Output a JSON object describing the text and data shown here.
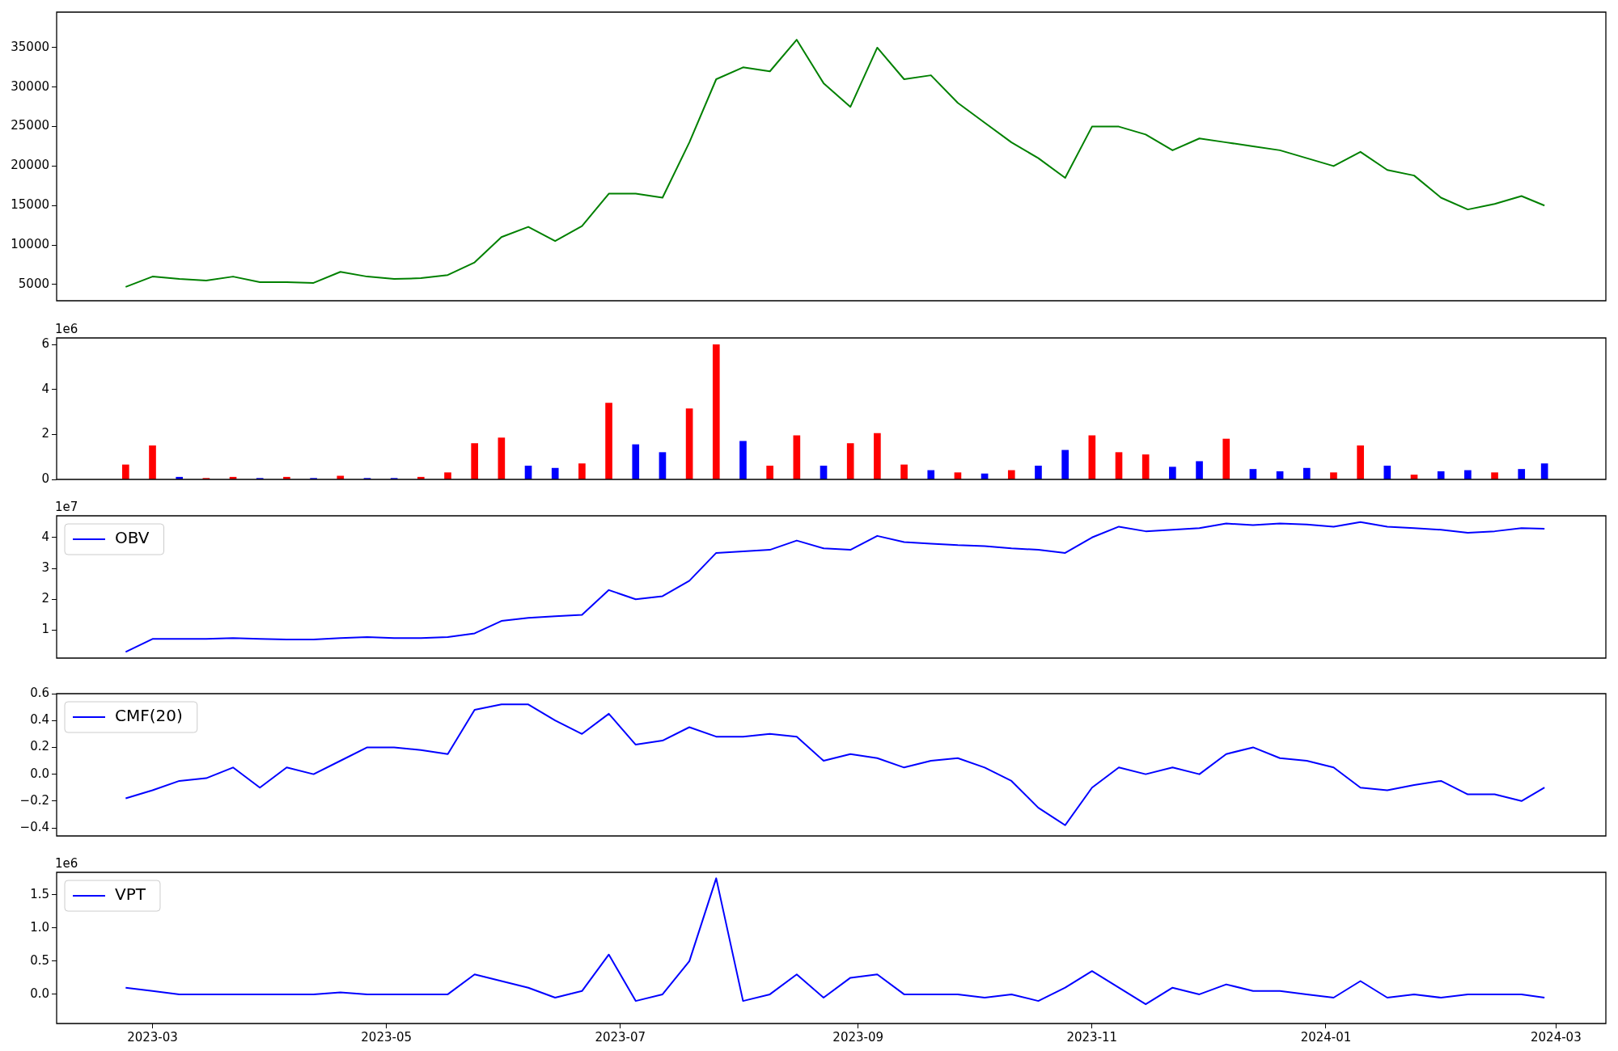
{
  "chart_data": [
    {
      "type": "line",
      "x": [
        "2023-02-22",
        "2023-03-01",
        "2023-03-08",
        "2023-03-15",
        "2023-03-22",
        "2023-03-29",
        "2023-04-05",
        "2023-04-12",
        "2023-04-19",
        "2023-04-26",
        "2023-05-03",
        "2023-05-10",
        "2023-05-17",
        "2023-05-24",
        "2023-05-31",
        "2023-06-07",
        "2023-06-14",
        "2023-06-21",
        "2023-06-28",
        "2023-07-05",
        "2023-07-12",
        "2023-07-19",
        "2023-07-26",
        "2023-08-02",
        "2023-08-09",
        "2023-08-16",
        "2023-08-23",
        "2023-08-30",
        "2023-09-06",
        "2023-09-13",
        "2023-09-20",
        "2023-09-27",
        "2023-10-04",
        "2023-10-11",
        "2023-10-18",
        "2023-10-25",
        "2023-11-01",
        "2023-11-08",
        "2023-11-15",
        "2023-11-22",
        "2023-11-29",
        "2023-12-06",
        "2023-12-13",
        "2023-12-20",
        "2023-12-27",
        "2024-01-03",
        "2024-01-10",
        "2024-01-17",
        "2024-01-24",
        "2024-01-31",
        "2024-02-07",
        "2024-02-14",
        "2024-02-21",
        "2024-02-27"
      ],
      "series": [
        {
          "color": "#008000",
          "values": [
            4700,
            6000,
            5700,
            5500,
            6000,
            5300,
            5300,
            5200,
            6600,
            6000,
            5700,
            5800,
            6200,
            7800,
            11000,
            12300,
            10500,
            12400,
            16500,
            16500,
            16000,
            23000,
            31000,
            32500,
            32000,
            36000,
            30500,
            27500,
            35000,
            31000,
            31500,
            28000,
            25500,
            23000,
            21000,
            18500,
            25000,
            25000,
            24000,
            22000,
            23500,
            23000,
            22500,
            22000,
            21000,
            20000,
            21800,
            19500,
            18800,
            16000,
            14500,
            15200,
            16200,
            15000
          ]
        }
      ],
      "xlim": [
        "2023-02-04",
        "2024-03-14"
      ],
      "ylim": [
        2940,
        39500
      ],
      "yticks": [
        5000,
        10000,
        15000,
        20000,
        25000,
        30000,
        35000
      ],
      "tick_labels": "y"
    },
    {
      "type": "bar",
      "x": [
        "2023-02-22",
        "2023-03-01",
        "2023-03-08",
        "2023-03-15",
        "2023-03-22",
        "2023-03-29",
        "2023-04-05",
        "2023-04-12",
        "2023-04-19",
        "2023-04-26",
        "2023-05-03",
        "2023-05-10",
        "2023-05-17",
        "2023-05-24",
        "2023-05-31",
        "2023-06-07",
        "2023-06-14",
        "2023-06-21",
        "2023-06-28",
        "2023-07-05",
        "2023-07-12",
        "2023-07-19",
        "2023-07-26",
        "2023-08-02",
        "2023-08-09",
        "2023-08-16",
        "2023-08-23",
        "2023-08-30",
        "2023-09-06",
        "2023-09-13",
        "2023-09-20",
        "2023-09-27",
        "2023-10-04",
        "2023-10-11",
        "2023-10-18",
        "2023-10-25",
        "2023-11-01",
        "2023-11-08",
        "2023-11-15",
        "2023-11-22",
        "2023-11-29",
        "2023-12-06",
        "2023-12-13",
        "2023-12-20",
        "2023-12-27",
        "2024-01-03",
        "2024-01-10",
        "2024-01-17",
        "2024-01-24",
        "2024-01-31",
        "2024-02-07",
        "2024-02-14",
        "2024-02-21",
        "2024-02-27"
      ],
      "values": [
        0.65,
        1.5,
        0.1,
        0.05,
        0.1,
        0.05,
        0.1,
        0.05,
        0.15,
        0.05,
        0.05,
        0.1,
        0.3,
        1.6,
        1.85,
        0.6,
        0.5,
        0.7,
        3.4,
        1.55,
        1.2,
        3.15,
        6.0,
        1.7,
        0.6,
        1.95,
        0.6,
        1.6,
        2.05,
        0.65,
        0.4,
        0.3,
        0.25,
        0.4,
        0.6,
        1.3,
        1.95,
        1.2,
        1.1,
        0.55,
        0.8,
        1.8,
        0.45,
        0.35,
        0.5,
        0.3,
        1.5,
        0.6,
        0.2,
        0.35,
        0.4,
        0.3,
        0.45,
        0.7
      ],
      "colors": [
        "#ff0000",
        "#ff0000",
        "#0000ff",
        "#ff0000",
        "#ff0000",
        "#0000ff",
        "#ff0000",
        "#0000ff",
        "#ff0000",
        "#0000ff",
        "#0000ff",
        "#ff0000",
        "#ff0000",
        "#ff0000",
        "#ff0000",
        "#0000ff",
        "#0000ff",
        "#ff0000",
        "#ff0000",
        "#0000ff",
        "#0000ff",
        "#ff0000",
        "#ff0000",
        "#0000ff",
        "#ff0000",
        "#ff0000",
        "#0000ff",
        "#ff0000",
        "#ff0000",
        "#ff0000",
        "#0000ff",
        "#ff0000",
        "#0000ff",
        "#ff0000",
        "#0000ff",
        "#0000ff",
        "#ff0000",
        "#ff0000",
        "#ff0000",
        "#0000ff",
        "#0000ff",
        "#ff0000",
        "#0000ff",
        "#0000ff",
        "#0000ff",
        "#ff0000",
        "#ff0000",
        "#0000ff",
        "#ff0000",
        "#0000ff",
        "#0000ff",
        "#ff0000",
        "#0000ff",
        "#0000ff"
      ],
      "xlim": [
        "2023-02-04",
        "2024-03-14"
      ],
      "ylim": [
        0,
        6.3
      ],
      "yticks": [
        0,
        2,
        4,
        6
      ],
      "tick_labels": "y",
      "annotations": [
        "1e6"
      ]
    },
    {
      "type": "line",
      "x": [
        "2023-02-22",
        "2023-03-01",
        "2023-03-08",
        "2023-03-15",
        "2023-03-22",
        "2023-03-29",
        "2023-04-05",
        "2023-04-12",
        "2023-04-19",
        "2023-04-26",
        "2023-05-03",
        "2023-05-10",
        "2023-05-17",
        "2023-05-24",
        "2023-05-31",
        "2023-06-07",
        "2023-06-14",
        "2023-06-21",
        "2023-06-28",
        "2023-07-05",
        "2023-07-12",
        "2023-07-19",
        "2023-07-26",
        "2023-08-02",
        "2023-08-09",
        "2023-08-16",
        "2023-08-23",
        "2023-08-30",
        "2023-09-06",
        "2023-09-13",
        "2023-09-20",
        "2023-09-27",
        "2023-10-04",
        "2023-10-11",
        "2023-10-18",
        "2023-10-25",
        "2023-11-01",
        "2023-11-08",
        "2023-11-15",
        "2023-11-22",
        "2023-11-29",
        "2023-12-06",
        "2023-12-13",
        "2023-12-20",
        "2023-12-27",
        "2024-01-03",
        "2024-01-10",
        "2024-01-17",
        "2024-01-24",
        "2024-01-31",
        "2024-02-07",
        "2024-02-14",
        "2024-02-21",
        "2024-02-27"
      ],
      "series": [
        {
          "name": "OBV",
          "color": "#0000ff",
          "values": [
            0.3,
            0.72,
            0.72,
            0.72,
            0.75,
            0.72,
            0.7,
            0.7,
            0.75,
            0.78,
            0.75,
            0.75,
            0.78,
            0.9,
            1.3,
            1.4,
            1.45,
            1.5,
            2.3,
            2.0,
            2.1,
            2.6,
            3.5,
            3.55,
            3.6,
            3.9,
            3.65,
            3.6,
            4.05,
            3.85,
            3.8,
            3.75,
            3.72,
            3.65,
            3.6,
            3.5,
            4.0,
            4.35,
            4.2,
            4.25,
            4.3,
            4.45,
            4.4,
            4.45,
            4.42,
            4.35,
            4.5,
            4.35,
            4.3,
            4.25,
            4.15,
            4.2,
            4.3,
            4.28
          ]
        }
      ],
      "xlim": [
        "2023-02-04",
        "2024-03-14"
      ],
      "ylim": [
        0.1,
        4.7
      ],
      "yticks": [
        1,
        2,
        3,
        4
      ],
      "tick_labels": "y",
      "legend": "top left",
      "annotations": [
        "1e7"
      ]
    },
    {
      "type": "line",
      "x": [
        "2023-02-22",
        "2023-03-01",
        "2023-03-08",
        "2023-03-15",
        "2023-03-22",
        "2023-03-29",
        "2023-04-05",
        "2023-04-12",
        "2023-04-19",
        "2023-04-26",
        "2023-05-03",
        "2023-05-10",
        "2023-05-17",
        "2023-05-24",
        "2023-05-31",
        "2023-06-07",
        "2023-06-14",
        "2023-06-21",
        "2023-06-28",
        "2023-07-05",
        "2023-07-12",
        "2023-07-19",
        "2023-07-26",
        "2023-08-02",
        "2023-08-09",
        "2023-08-16",
        "2023-08-23",
        "2023-08-30",
        "2023-09-06",
        "2023-09-13",
        "2023-09-20",
        "2023-09-27",
        "2023-10-04",
        "2023-10-11",
        "2023-10-18",
        "2023-10-25",
        "2023-11-01",
        "2023-11-08",
        "2023-11-15",
        "2023-11-22",
        "2023-11-29",
        "2023-12-06",
        "2023-12-13",
        "2023-12-20",
        "2023-12-27",
        "2024-01-03",
        "2024-01-10",
        "2024-01-17",
        "2024-01-24",
        "2024-01-31",
        "2024-02-07",
        "2024-02-14",
        "2024-02-21",
        "2024-02-27"
      ],
      "series": [
        {
          "name": "CMF(20)",
          "color": "#0000ff",
          "values": [
            -0.18,
            -0.12,
            -0.05,
            -0.03,
            0.05,
            -0.1,
            0.05,
            0.0,
            0.1,
            0.2,
            0.2,
            0.18,
            0.15,
            0.48,
            0.52,
            0.52,
            0.4,
            0.3,
            0.45,
            0.22,
            0.25,
            0.35,
            0.28,
            0.28,
            0.3,
            0.28,
            0.1,
            0.15,
            0.12,
            0.05,
            0.1,
            0.12,
            0.05,
            -0.05,
            -0.25,
            -0.38,
            -0.1,
            0.05,
            0.0,
            0.05,
            0.0,
            0.15,
            0.2,
            0.12,
            0.1,
            0.05,
            -0.1,
            -0.12,
            -0.08,
            -0.05,
            -0.15,
            -0.15,
            -0.2,
            -0.1
          ]
        }
      ],
      "xlim": [
        "2023-02-04",
        "2024-03-14"
      ],
      "ylim": [
        -0.46,
        0.6
      ],
      "yticks": [
        {
          "value": -0.4,
          "label": "−0.4"
        },
        {
          "value": -0.2,
          "label": "−0.2"
        },
        {
          "value": 0,
          "label": "0.0"
        },
        0.2,
        0.4,
        0.6
      ],
      "tick_labels": "y",
      "legend": "top left"
    },
    {
      "type": "line",
      "x": [
        "2023-02-22",
        "2023-03-01",
        "2023-03-08",
        "2023-03-15",
        "2023-03-22",
        "2023-03-29",
        "2023-04-05",
        "2023-04-12",
        "2023-04-19",
        "2023-04-26",
        "2023-05-03",
        "2023-05-10",
        "2023-05-17",
        "2023-05-24",
        "2023-05-31",
        "2023-06-07",
        "2023-06-14",
        "2023-06-21",
        "2023-06-28",
        "2023-07-05",
        "2023-07-12",
        "2023-07-19",
        "2023-07-26",
        "2023-08-02",
        "2023-08-09",
        "2023-08-16",
        "2023-08-23",
        "2023-08-30",
        "2023-09-06",
        "2023-09-13",
        "2023-09-20",
        "2023-09-27",
        "2023-10-04",
        "2023-10-11",
        "2023-10-18",
        "2023-10-25",
        "2023-11-01",
        "2023-11-08",
        "2023-11-15",
        "2023-11-22",
        "2023-11-29",
        "2023-12-06",
        "2023-12-13",
        "2023-12-20",
        "2023-12-27",
        "2024-01-03",
        "2024-01-10",
        "2024-01-17",
        "2024-01-24",
        "2024-01-31",
        "2024-02-07",
        "2024-02-14",
        "2024-02-21",
        "2024-02-27"
      ],
      "series": [
        {
          "name": "VPT",
          "color": "#0000ff",
          "values": [
            0.1,
            0.05,
            0,
            0,
            0,
            0,
            0,
            0,
            0.03,
            0,
            0,
            0,
            0,
            0.3,
            0.2,
            0.1,
            -0.05,
            0.05,
            0.6,
            -0.1,
            0,
            0.5,
            1.75,
            -0.1,
            0,
            0.3,
            -0.05,
            0.25,
            0.3,
            0,
            0,
            0,
            -0.05,
            0,
            -0.1,
            0.1,
            0.35,
            0.1,
            -0.15,
            0.1,
            0,
            0.15,
            0.05,
            0.05,
            0,
            -0.05,
            0.2,
            -0.05,
            0,
            -0.05,
            0,
            0,
            0,
            -0.05
          ]
        }
      ],
      "xlim": [
        "2023-02-04",
        "2024-03-14"
      ],
      "xticks": [
        "2023-03",
        "2023-05",
        "2023-07",
        "2023-09",
        "2023-11",
        "2024-01",
        "2024-03"
      ],
      "ylim": [
        -0.44,
        1.84
      ],
      "yticks": [
        {
          "value": 0,
          "label": "0.0"
        },
        0.5,
        {
          "value": 1,
          "label": "1.0"
        },
        1.5
      ],
      "legend": "top left",
      "annotations": [
        "1e6"
      ]
    }
  ]
}
